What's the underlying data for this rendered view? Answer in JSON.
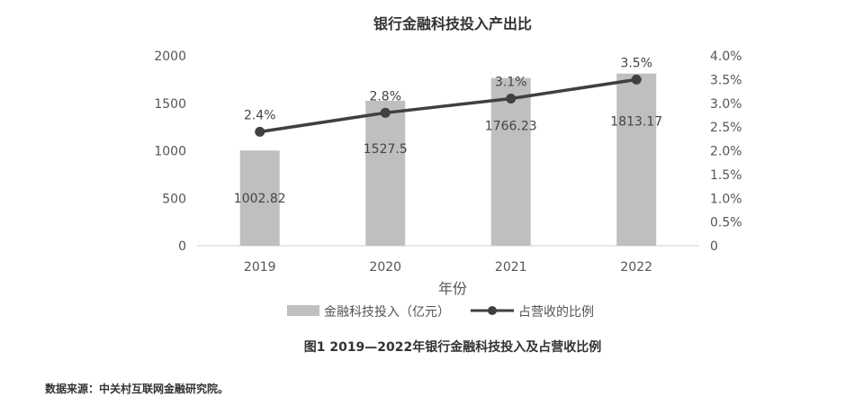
{
  "chart_data": {
    "type": "bar",
    "title": "银行金融科技投入产出比",
    "categories": [
      "2019",
      "2020",
      "2021",
      "2022"
    ],
    "series": [
      {
        "name": "金融科技投入（亿元）",
        "type": "bar",
        "axis": "left",
        "values": [
          1002.82,
          1527.5,
          1766.23,
          1813.17
        ],
        "labels": [
          "1002.82",
          "1527.5",
          "1766.23",
          "1813.17"
        ],
        "color": "#bfbfbf"
      },
      {
        "name": "占营收的比例",
        "type": "line",
        "axis": "right",
        "values": [
          2.4,
          2.8,
          3.1,
          3.5
        ],
        "labels": [
          "2.4%",
          "2.8%",
          "3.1%",
          "3.5%"
        ],
        "color": "#404040"
      }
    ],
    "xlabel": "年份",
    "ylabel": "",
    "ylim": [
      0,
      2000
    ],
    "y_ticks": [
      "0",
      "500",
      "1000",
      "1500",
      "2000"
    ],
    "y2lim": [
      0,
      4.0
    ],
    "y2_ticks": [
      "0",
      "0.5%",
      "1.0%",
      "1.5%",
      "2.0%",
      "2.5%",
      "3.0%",
      "3.5%",
      "4.0%"
    ],
    "grid": false,
    "legend_position": "bottom"
  },
  "caption": "图1  2019—2022年银行金融科技投入及占营收比例",
  "source": "数据来源：中关村互联网金融研究院。"
}
